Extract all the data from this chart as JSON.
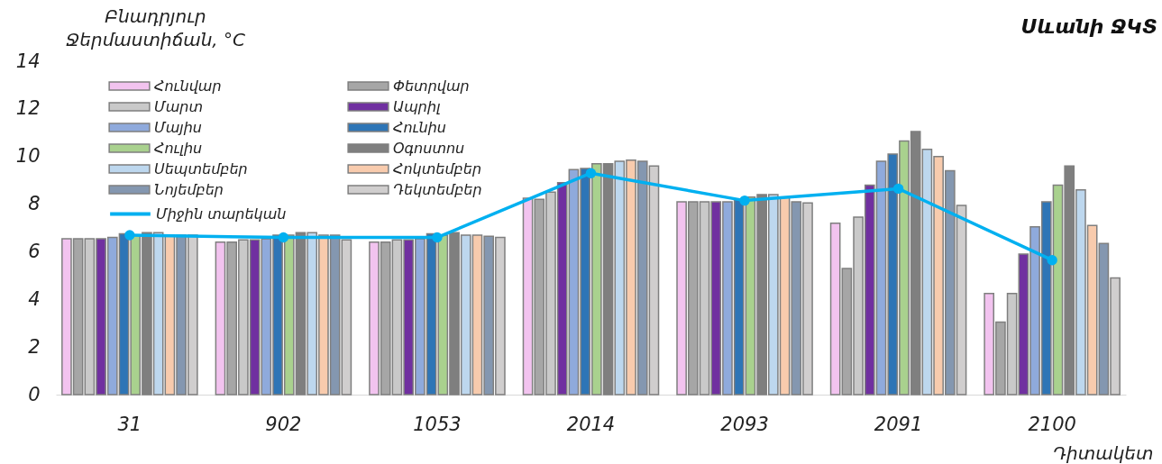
{
  "chart_data": {
    "type": "bar",
    "title": "Սևանի ՋԿՏ",
    "ylabel": "Բնադրյուր\nՋերմաստիճան,  °C",
    "xlabel": "Դիտակետ",
    "categories": [
      "31",
      "902",
      "1053",
      "2014",
      "2093",
      "2091",
      "2100"
    ],
    "ylim": [
      0,
      14
    ],
    "yticks": [
      0,
      2,
      4,
      6,
      8,
      10,
      12,
      14
    ],
    "legend": "top left",
    "marker": "circle",
    "series": [
      {
        "name": "Հունվար",
        "color": "#f2c3ef",
        "values": [
          6.55,
          6.4,
          6.4,
          8.25,
          8.1,
          7.2,
          4.25
        ]
      },
      {
        "name": "Փետրվար",
        "color": "#a6a6a6",
        "values": [
          6.55,
          6.4,
          6.4,
          8.2,
          8.1,
          5.3,
          3.05
        ]
      },
      {
        "name": "Մարտ",
        "color": "#c9c9c9",
        "values": [
          6.55,
          6.5,
          6.5,
          8.5,
          8.1,
          7.45,
          4.25
        ]
      },
      {
        "name": "Ապրիլ",
        "color": "#7030a0",
        "values": [
          6.55,
          6.5,
          6.5,
          8.9,
          8.1,
          8.8,
          5.9
        ]
      },
      {
        "name": "Մայիս",
        "color": "#8faadc",
        "values": [
          6.6,
          6.55,
          6.55,
          9.45,
          8.1,
          9.8,
          7.05
        ]
      },
      {
        "name": "Հունիս",
        "color": "#2e75b6",
        "values": [
          6.75,
          6.7,
          6.75,
          9.5,
          8.2,
          10.1,
          8.1
        ]
      },
      {
        "name": "Հուլիս",
        "color": "#a9d18e",
        "values": [
          6.7,
          6.7,
          6.7,
          9.7,
          8.3,
          10.65,
          8.8
        ]
      },
      {
        "name": "Օգոստոս",
        "color": "#7f7f7f",
        "values": [
          6.8,
          6.8,
          6.8,
          9.7,
          8.4,
          11.05,
          9.6
        ]
      },
      {
        "name": "Սեպտեմբեր",
        "color": "#bdd7ee",
        "values": [
          6.8,
          6.8,
          6.7,
          9.8,
          8.4,
          10.3,
          8.6
        ]
      },
      {
        "name": "Հոկտեմբեր",
        "color": "#f8cbad",
        "values": [
          6.7,
          6.7,
          6.7,
          9.85,
          8.3,
          10.0,
          7.1
        ]
      },
      {
        "name": "Նոյեմբեր",
        "color": "#8497b0",
        "values": [
          6.7,
          6.7,
          6.65,
          9.8,
          8.1,
          9.4,
          6.35
        ]
      },
      {
        "name": "Դեկտեմբեր",
        "color": "#d0cece",
        "values": [
          6.7,
          6.5,
          6.6,
          9.6,
          8.05,
          7.95,
          4.9
        ]
      },
      {
        "name": "Միջին տարեկան",
        "type": "line",
        "color": "#00b0f0",
        "values": [
          6.7,
          6.6,
          6.6,
          9.3,
          8.15,
          8.65,
          5.65
        ]
      }
    ]
  }
}
